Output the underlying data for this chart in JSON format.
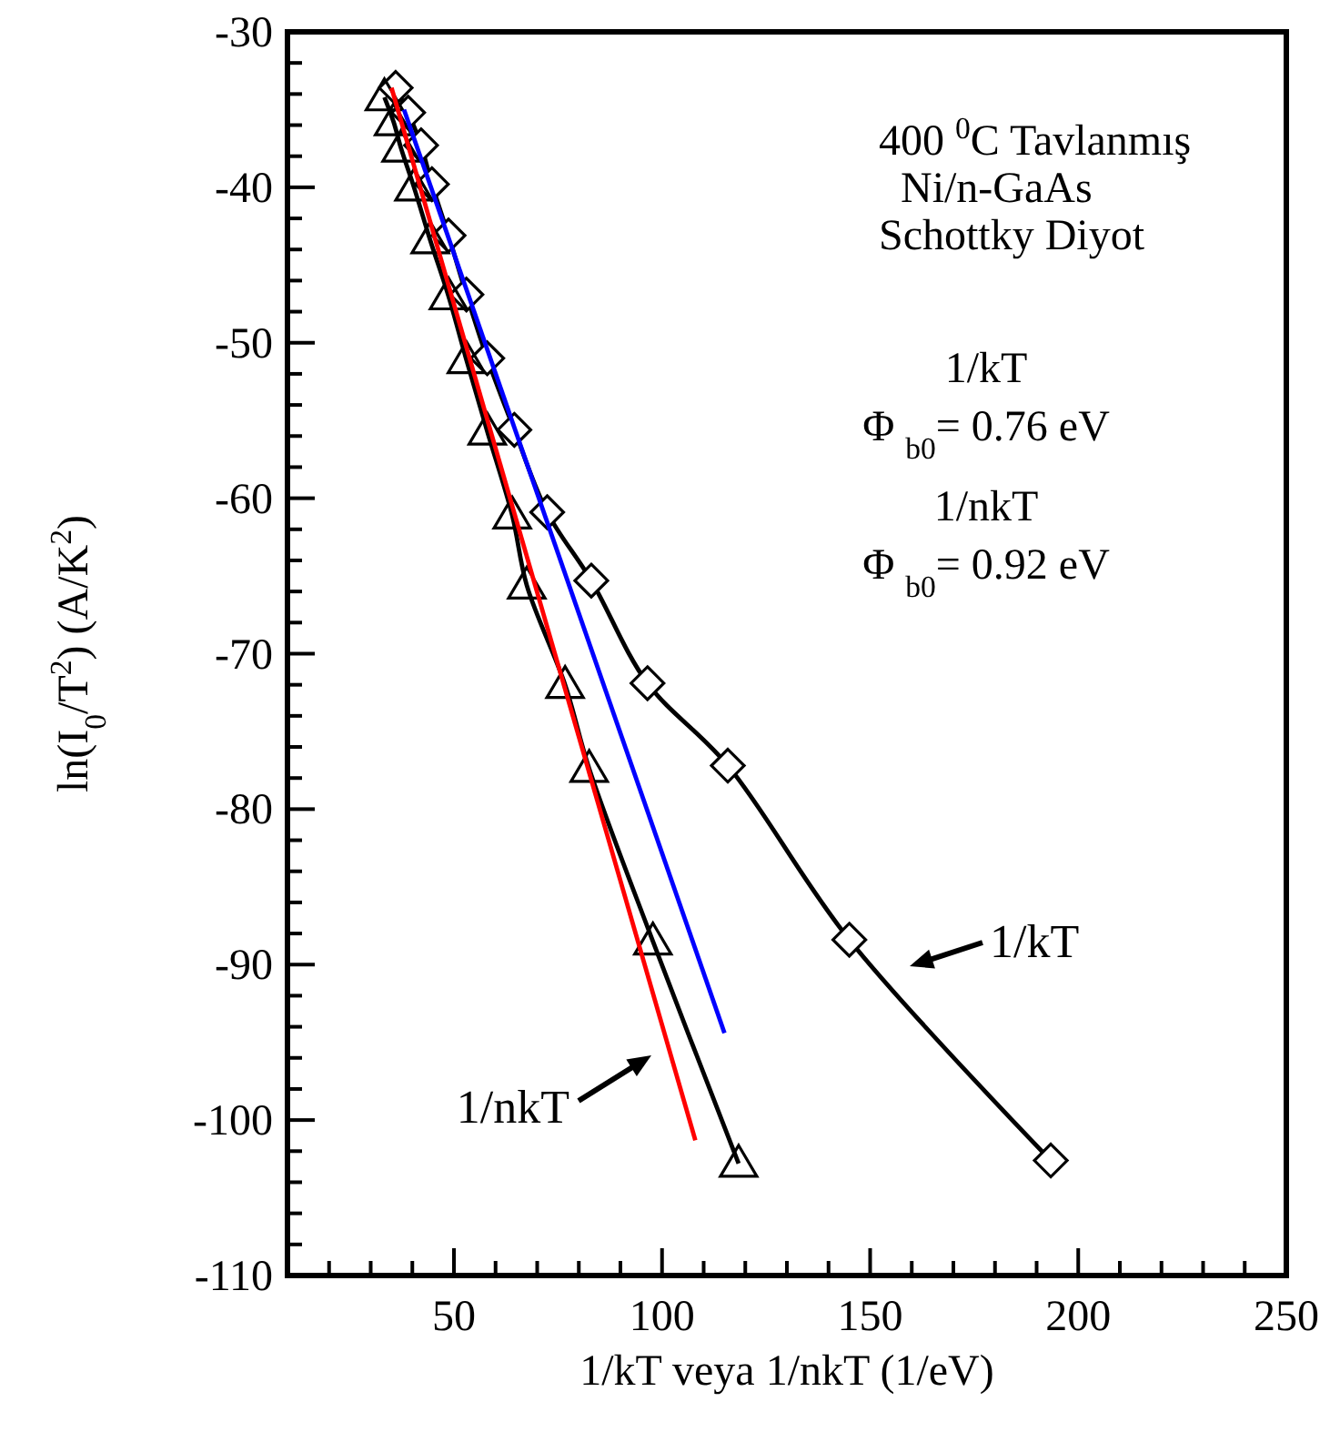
{
  "chart_data": {
    "type": "line",
    "xlabel": "1/kT veya 1/nkT (1/eV)",
    "ylabel": "ln(I$_{0}$/T$^{2}$) (A/K$^{2}$)",
    "xlim": [
      10,
      250
    ],
    "ylim": [
      -110,
      -30
    ],
    "xticks": [
      {
        "value": 10,
        "label": null
      },
      {
        "value": 20,
        "label": null
      },
      {
        "value": 30,
        "label": null
      },
      {
        "value": 40,
        "label": null
      },
      50,
      {
        "value": 60,
        "label": null
      },
      {
        "value": 70,
        "label": null
      },
      {
        "value": 80,
        "label": null
      },
      {
        "value": 90,
        "label": null
      },
      100,
      {
        "value": 110,
        "label": null
      },
      {
        "value": 120,
        "label": null
      },
      {
        "value": 130,
        "label": null
      },
      {
        "value": 140,
        "label": null
      },
      150,
      {
        "value": 160,
        "label": null
      },
      {
        "value": 170,
        "label": null
      },
      {
        "value": 180,
        "label": null
      },
      {
        "value": 190,
        "label": null
      },
      200,
      {
        "value": 210,
        "label": null
      },
      {
        "value": 220,
        "label": null
      },
      {
        "value": 230,
        "label": null
      },
      {
        "value": 240,
        "label": null
      },
      250
    ],
    "yticks": [
      -110,
      {
        "value": -108,
        "label": null
      },
      {
        "value": -106,
        "label": null
      },
      {
        "value": -104,
        "label": null
      },
      {
        "value": -102,
        "label": null
      },
      -100,
      {
        "value": -98,
        "label": null
      },
      {
        "value": -96,
        "label": null
      },
      {
        "value": -94,
        "label": null
      },
      {
        "value": -92,
        "label": null
      },
      -90,
      {
        "value": -88,
        "label": null
      },
      {
        "value": -86,
        "label": null
      },
      {
        "value": -84,
        "label": null
      },
      {
        "value": -82,
        "label": null
      },
      -80,
      {
        "value": -78,
        "label": null
      },
      {
        "value": -76,
        "label": null
      },
      {
        "value": -74,
        "label": null
      },
      {
        "value": -72,
        "label": null
      },
      -70,
      {
        "value": -68,
        "label": null
      },
      {
        "value": -66,
        "label": null
      },
      {
        "value": -64,
        "label": null
      },
      {
        "value": -62,
        "label": null
      },
      -60,
      {
        "value": -58,
        "label": null
      },
      {
        "value": -56,
        "label": null
      },
      {
        "value": -54,
        "label": null
      },
      {
        "value": -52,
        "label": null
      },
      -50,
      {
        "value": -48,
        "label": null
      },
      {
        "value": -46,
        "label": null
      },
      {
        "value": -44,
        "label": null
      },
      {
        "value": -42,
        "label": null
      },
      -40,
      {
        "value": -38,
        "label": null
      },
      {
        "value": -36,
        "label": null
      },
      {
        "value": -34,
        "label": null
      },
      {
        "value": -32,
        "label": null
      },
      -30
    ],
    "grid": false,
    "series": [
      {
        "color": "#000000",
        "marker": "diamond",
        "x": [
          36,
          39,
          42.1,
          44.7,
          48.7,
          53,
          58,
          64.5,
          72.4,
          83,
          96.5,
          115.8,
          145,
          193.4
        ],
        "values": [
          -33.6,
          -35.2,
          -37.3,
          -39.8,
          -43.1,
          -46.9,
          -51,
          -55.6,
          -60.9,
          -65.3,
          -71.9,
          -77.2,
          -88.4,
          -102.6
        ]
      },
      {
        "color": "#000000",
        "marker": "triangle",
        "x": [
          33.3,
          35.5,
          37.3,
          40.4,
          44.3,
          48.7,
          53,
          58,
          64,
          67.5,
          76.7,
          82.5,
          97.8,
          118.4
        ],
        "values": [
          -34.2,
          -35.8,
          -37.5,
          -40,
          -43.4,
          -47,
          -51.1,
          -55.7,
          -61.1,
          -65.6,
          -72,
          -77.4,
          -88.5,
          -102.8
        ]
      },
      {
        "color": "#ff0000",
        "marker": "none",
        "x": [
          35,
          108
        ],
        "values": [
          -33.6,
          -101.3
        ]
      },
      {
        "color": "#0000ff",
        "marker": "none",
        "x": [
          38,
          115
        ],
        "values": [
          -35,
          -94.4
        ]
      }
    ],
    "annotations": [
      "400 $^{0}$C Tavlanmış",
      "Ni/n-GaAs",
      "Schottky Diyot",
      "1/kT",
      "Φ $_{b0}$= 0.76 eV",
      "1/nkT",
      "Φ $_{b0}$= 0.92 eV",
      "1/kT",
      "1/nkT"
    ]
  }
}
